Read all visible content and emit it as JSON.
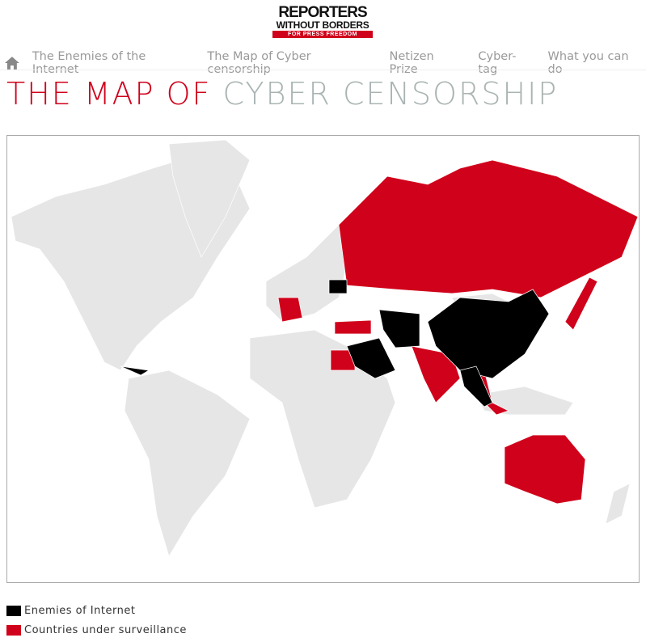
{
  "logo": {
    "line1": "REPORTERS",
    "line2": "WITHOUT BORDERS",
    "line3": "FOR PRESS FREEDOM"
  },
  "nav": {
    "home_icon": "home-icon",
    "items": [
      "The Enemies of the Internet",
      "The Map of Cyber censorship",
      "Netizen Prize",
      "Cyber-tag",
      "What you can do"
    ]
  },
  "title": {
    "part1": "THE MAP OF",
    "part2": "CYBER CENSORSHIP"
  },
  "colors": {
    "enemies": "#000000",
    "surveillance": "#d0021b",
    "other": "#e6e6e6"
  },
  "legend": [
    {
      "label": "Enemies of Internet",
      "color": "#000000"
    },
    {
      "label": "Countries under surveillance",
      "color": "#d0021b"
    }
  ]
}
